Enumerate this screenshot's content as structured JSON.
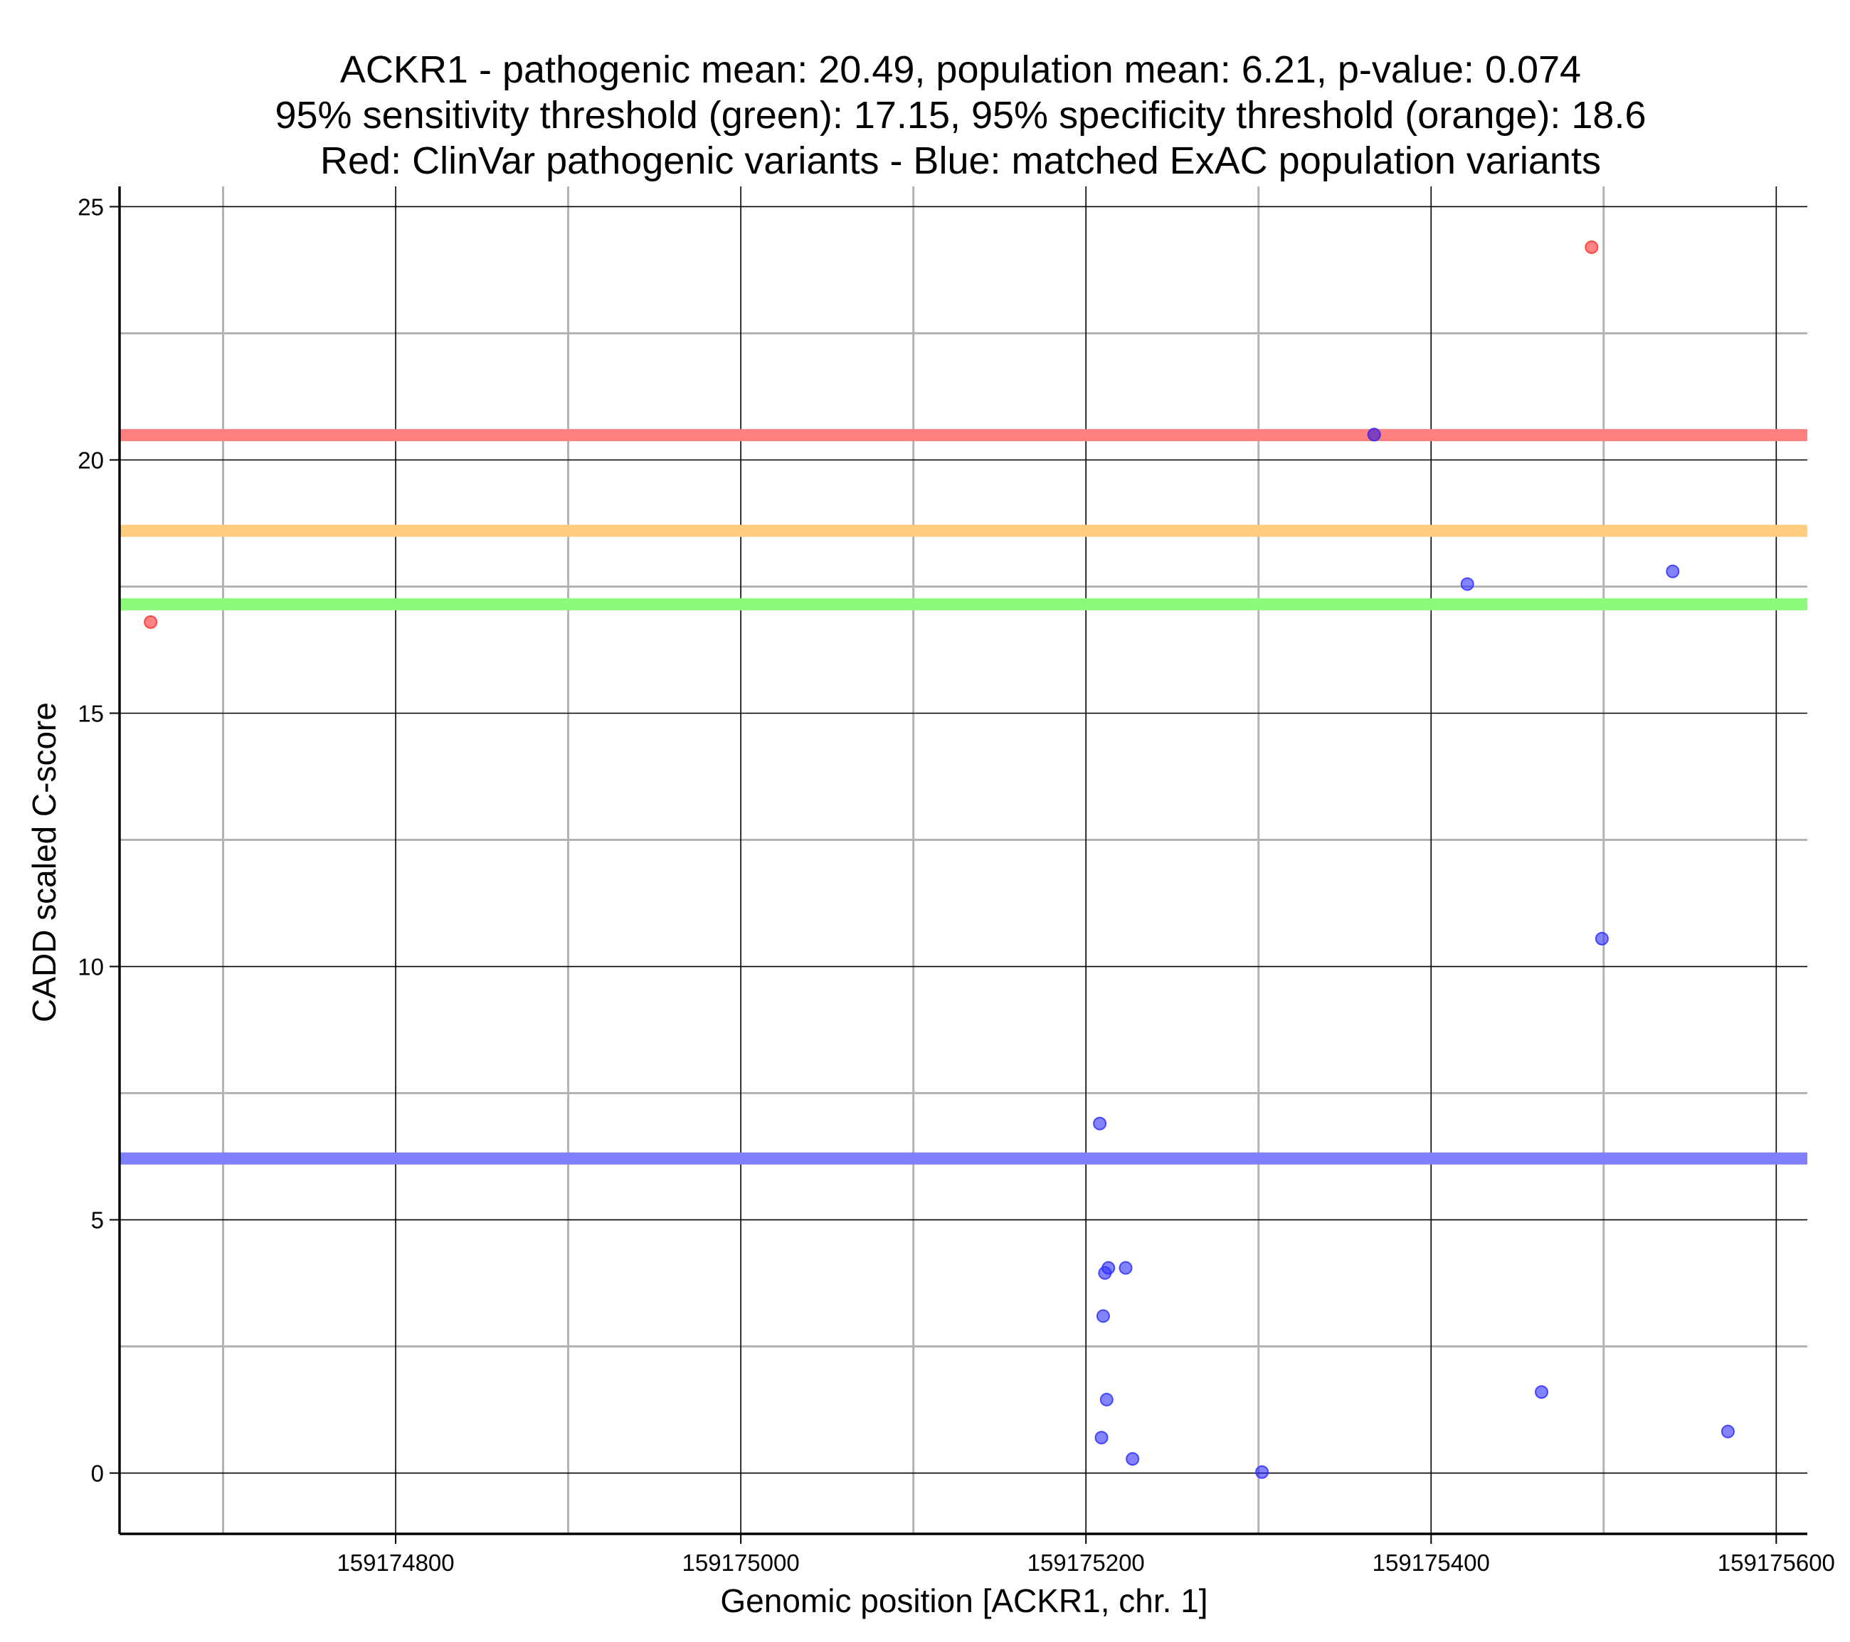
{
  "chart_data": {
    "type": "scatter",
    "title_lines": [
      "ACKR1 - pathogenic mean: 20.49, population mean: 6.21, p-value: 0.074",
      "95% sensitivity threshold (green): 17.15, 95% specificity threshold (orange): 18.6",
      "Red: ClinVar pathogenic variants - Blue: matched ExAC population variants"
    ],
    "xlabel": "Genomic position [ACKR1, chr. 1]",
    "ylabel": "CADD scaled C-score",
    "xlim": [
      159174640,
      159175618
    ],
    "ylim": [
      -1.2,
      25.4
    ],
    "x_ticks": [
      159174800,
      159175000,
      159175200,
      159175400,
      159175600
    ],
    "x_tick_labels": [
      "159174800",
      "159175000",
      "159175200",
      "159175400",
      "159175600"
    ],
    "x_minor_gridlines": [
      159174700,
      159174900,
      159175100,
      159175300,
      159175500
    ],
    "y_ticks": [
      0,
      5,
      10,
      15,
      20,
      25
    ],
    "y_tick_labels": [
      "0",
      "5",
      "10",
      "15",
      "20",
      "25"
    ],
    "y_minor_gridlines": [
      2.5,
      7.5,
      12.5,
      17.5,
      22.5
    ],
    "grid": true,
    "reference_lines": [
      {
        "name": "pathogenic-mean",
        "y": 20.49,
        "color": "#ff8080"
      },
      {
        "name": "specificity-threshold",
        "y": 18.6,
        "color": "#ffcc80"
      },
      {
        "name": "sensitivity-threshold",
        "y": 17.15,
        "color": "#8cfa7a"
      },
      {
        "name": "population-mean",
        "y": 6.21,
        "color": "#8080ff"
      }
    ],
    "series": [
      {
        "color": "#ff3030",
        "points": [
          {
            "x": 159174658,
            "y": 16.8
          },
          {
            "x": 159175367,
            "y": 20.5
          },
          {
            "x": 159175493,
            "y": 24.2
          }
        ]
      },
      {
        "color": "#3030ff",
        "points": [
          {
            "x": 159175208,
            "y": 6.9
          },
          {
            "x": 159175213,
            "y": 4.05
          },
          {
            "x": 159175211,
            "y": 3.95
          },
          {
            "x": 159175223,
            "y": 4.05
          },
          {
            "x": 159175210,
            "y": 3.1
          },
          {
            "x": 159175212,
            "y": 1.45
          },
          {
            "x": 159175209,
            "y": 0.7
          },
          {
            "x": 159175227,
            "y": 0.28
          },
          {
            "x": 159175302,
            "y": 0.02
          },
          {
            "x": 159175367,
            "y": 20.5
          },
          {
            "x": 159175421,
            "y": 17.55
          },
          {
            "x": 159175464,
            "y": 1.6
          },
          {
            "x": 159175499,
            "y": 10.55
          },
          {
            "x": 159175540,
            "y": 17.8
          },
          {
            "x": 159175572,
            "y": 0.82
          }
        ]
      }
    ]
  }
}
